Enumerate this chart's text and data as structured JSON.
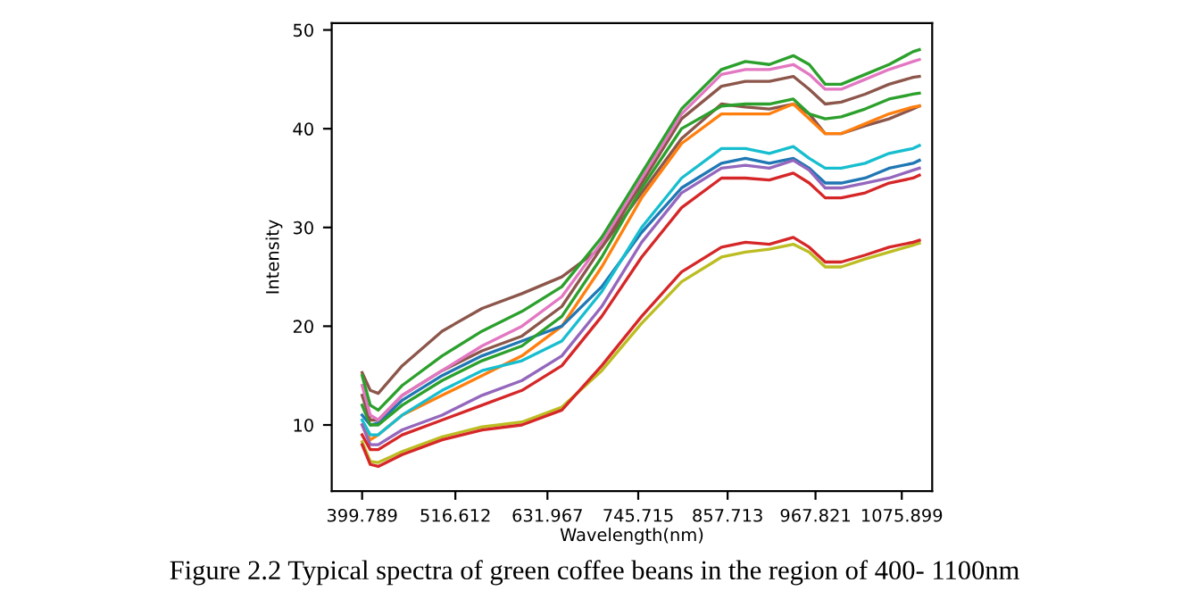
{
  "chart_data": {
    "type": "line",
    "title": "Figure 2.2 Typical spectra of green coffee beans in the region of 400- 1100nm",
    "xlabel": "Wavelength(nm)",
    "ylabel": "Intensity",
    "x": [
      399.789,
      410,
      420,
      450,
      500,
      550,
      600,
      650,
      700,
      750,
      800,
      850,
      880,
      910,
      940,
      960,
      980,
      1000,
      1030,
      1060,
      1090,
      1098
    ],
    "xlim": [
      361.7,
      1114
    ],
    "xticks": [
      399.789,
      516.612,
      631.967,
      745.715,
      857.713,
      967.821,
      1075.899
    ],
    "ylim": [
      3.3,
      50.7
    ],
    "yticks": [
      10,
      20,
      30,
      40,
      50
    ],
    "grid": false,
    "legend": false,
    "marker": "none",
    "line_style": "solid",
    "series": [
      {
        "color": "#8c564b",
        "values": [
          15.3,
          13.5,
          13.2,
          16,
          19.5,
          21.8,
          23.3,
          25,
          28,
          33.5,
          39,
          42.5,
          42.2,
          42,
          42.5,
          41.5,
          39.5,
          39.5,
          40.3,
          41,
          42,
          42.3
        ]
      },
      {
        "color": "#ff7f0e",
        "values": [
          10,
          8.5,
          9,
          11,
          13,
          15,
          17,
          20,
          26,
          33,
          38.5,
          41.5,
          41.5,
          41.5,
          42.5,
          41,
          39.5,
          39.5,
          40.5,
          41.5,
          42.2,
          42.3
        ]
      },
      {
        "color": "#1f77b4",
        "values": [
          11,
          10,
          10.2,
          12.5,
          15,
          17,
          18.5,
          20,
          24,
          29.5,
          34,
          36.5,
          37,
          36.5,
          37,
          36,
          34.5,
          34.5,
          35,
          36,
          36.5,
          36.8
        ]
      },
      {
        "color": "#17becf",
        "values": [
          10.5,
          9,
          9,
          11,
          13.5,
          15.5,
          16.5,
          18.5,
          23.5,
          30,
          35,
          38,
          38,
          37.5,
          38.2,
          37,
          36,
          36,
          36.5,
          37.5,
          38,
          38.3
        ]
      },
      {
        "color": "#9467bd",
        "values": [
          10,
          8,
          8,
          9.5,
          11,
          13,
          14.5,
          17,
          22,
          28.5,
          33.5,
          36,
          36.3,
          36,
          36.8,
          35.8,
          34,
          34,
          34.5,
          35,
          35.8,
          36
        ]
      },
      {
        "color": "#d62728",
        "values": [
          9,
          7.5,
          7.5,
          9,
          10.5,
          12,
          13.5,
          16,
          21,
          27,
          32,
          35,
          35,
          34.8,
          35.5,
          34.5,
          33,
          33,
          33.5,
          34.5,
          35,
          35.3
        ]
      },
      {
        "color": "#bcbd22",
        "values": [
          8.3,
          6.3,
          6.2,
          7.3,
          8.8,
          9.8,
          10.3,
          11.8,
          15.5,
          20.3,
          24.5,
          27,
          27.5,
          27.8,
          28.3,
          27.5,
          26,
          26,
          26.8,
          27.5,
          28.2,
          28.4
        ]
      },
      {
        "color": "#d62728",
        "values": [
          8,
          6,
          5.8,
          7,
          8.5,
          9.5,
          10,
          11.5,
          16,
          21,
          25.5,
          28,
          28.5,
          28.3,
          29,
          28,
          26.5,
          26.5,
          27.2,
          28,
          28.5,
          28.7
        ]
      },
      {
        "color": "#2ca02c",
        "values": [
          12,
          10,
          10,
          12,
          14.5,
          16.5,
          18,
          21,
          27,
          34,
          40,
          42.3,
          42.5,
          42.5,
          43,
          41.5,
          41,
          41.2,
          42,
          43,
          43.5,
          43.6
        ]
      },
      {
        "color": "#8c564b",
        "values": [
          13,
          10.5,
          10.5,
          13,
          15.5,
          17.5,
          19,
          22,
          28,
          34.5,
          41,
          44.3,
          44.8,
          44.8,
          45.3,
          44,
          42.5,
          42.7,
          43.5,
          44.5,
          45.2,
          45.3
        ]
      },
      {
        "color": "#e377c2",
        "values": [
          14,
          11,
          10.5,
          13,
          15.5,
          18,
          20,
          23,
          28.5,
          35,
          41.5,
          45.5,
          46,
          46,
          46.5,
          45.5,
          44,
          44,
          45,
          46,
          46.8,
          47
        ]
      },
      {
        "color": "#2ca02c",
        "values": [
          15,
          12,
          11.5,
          14,
          17,
          19.5,
          21.5,
          24,
          29,
          35.5,
          42,
          46,
          46.8,
          46.5,
          47.4,
          46.5,
          44.5,
          44.5,
          45.5,
          46.5,
          47.8,
          48
        ]
      }
    ]
  }
}
